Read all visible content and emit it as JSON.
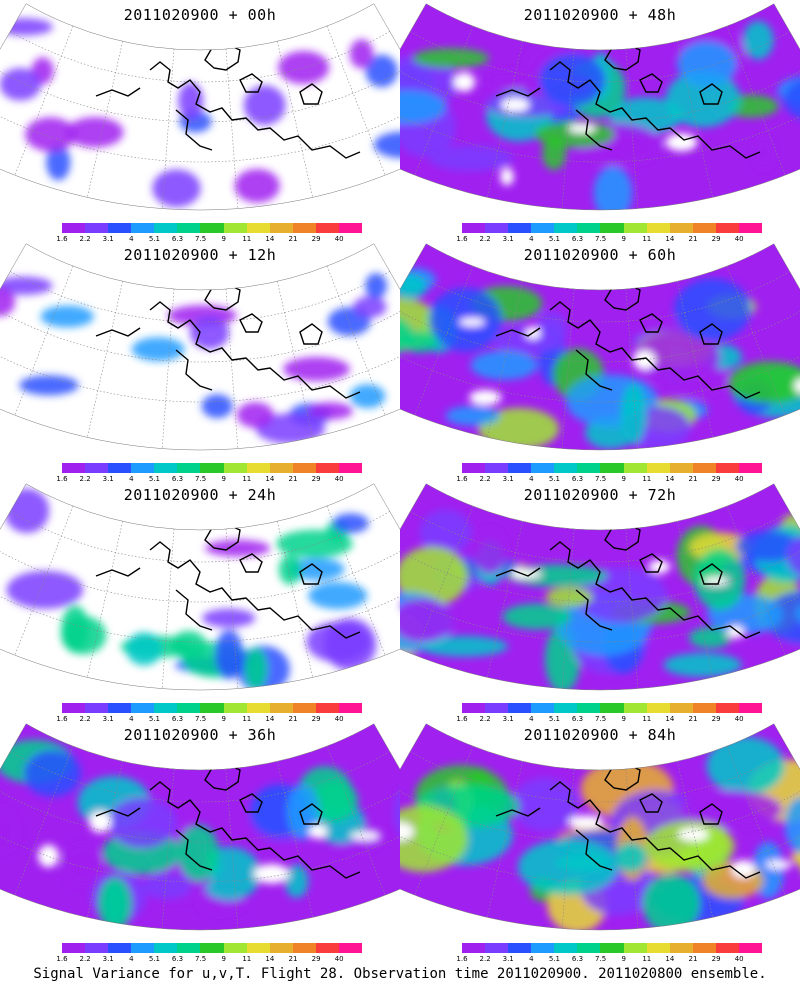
{
  "footer": "Signal Variance for u,v,T. Flight 28. Observation time 2011020900. 2011020800 ensemble.",
  "colorbar": {
    "ticks": [
      "1.6",
      "2.2",
      "3.1",
      "4",
      "5.1",
      "6.3",
      "7.5",
      "9",
      "11",
      "14",
      "21",
      "29",
      "40"
    ],
    "colors": [
      "#a020f0",
      "#7a3cff",
      "#2850ff",
      "#1e9bff",
      "#00c8c8",
      "#00d28c",
      "#28c828",
      "#a0e632",
      "#e6dc32",
      "#e6af2d",
      "#f08228",
      "#fa3c3c",
      "#ff1493"
    ]
  },
  "panels": [
    {
      "id": "p00",
      "title": "2011020900 + 00h",
      "col": 0,
      "row": 0,
      "level": 0.15
    },
    {
      "id": "p48",
      "title": "2011020900 + 48h",
      "col": 1,
      "row": 0,
      "level": 0.65
    },
    {
      "id": "p12",
      "title": "2011020900 + 12h",
      "col": 0,
      "row": 1,
      "level": 0.3
    },
    {
      "id": "p60",
      "title": "2011020900 + 60h",
      "col": 1,
      "row": 1,
      "level": 0.75
    },
    {
      "id": "p24",
      "title": "2011020900 + 24h",
      "col": 0,
      "row": 2,
      "level": 0.45
    },
    {
      "id": "p72",
      "title": "2011020900 + 72h",
      "col": 1,
      "row": 2,
      "level": 0.85
    },
    {
      "id": "p36",
      "title": "2011020900 + 36h",
      "col": 0,
      "row": 3,
      "level": 0.55
    },
    {
      "id": "p84",
      "title": "2011020900 + 84h",
      "col": 1,
      "row": 3,
      "level": 0.95
    }
  ]
}
